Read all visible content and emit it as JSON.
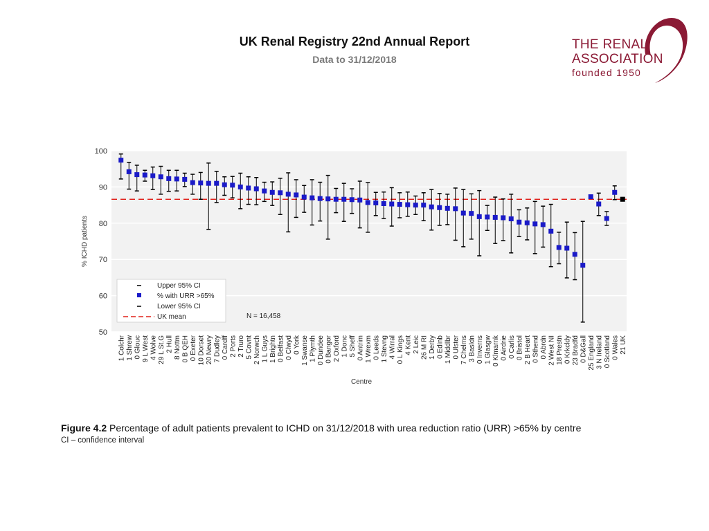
{
  "header": {
    "title": "UK Renal Registry 22nd Annual Report",
    "subtitle": "Data to 31/12/2018"
  },
  "logo": {
    "line1": "THE RENAL",
    "line2": "ASSOCIATION",
    "line3": "founded 1950",
    "color": "#8b1a35"
  },
  "caption": {
    "figure_label": "Figure 4.2",
    "text": " Percentage of adult patients prevalent to ICHD on 31/12/2018 with urea reduction ratio (URR) >65% by centre",
    "note": "CI – confidence interval"
  },
  "chart_data": {
    "type": "scatter",
    "title": "",
    "xlabel": "Centre",
    "ylabel": "% ICHD patients",
    "ylim": [
      50,
      100
    ],
    "yticks": [
      50,
      60,
      70,
      80,
      90,
      100
    ],
    "grid": true,
    "uk_mean": 86.6,
    "annotation": "N = 16,458",
    "legend": {
      "position": "bottom-left",
      "entries": [
        "Upper 95% CI",
        "% with URR >65%",
        "Lower 95% CI",
        "UK mean"
      ]
    },
    "colors": {
      "point": "#1a1ac8",
      "errorbar": "#000000",
      "mean": "#e0201a",
      "plot_bg": "#f2f2f2",
      "grid": "#ffffff",
      "aggregate_point": "#000000"
    },
    "categories": [
      "1 Colchr",
      "1 Shrew",
      "0 Glouc",
      "9 L West",
      "4 Wolve",
      "29 L St.G",
      "2 Hull",
      "8 Nottm",
      "0 B QEH",
      "0 Exeter",
      "10 Dorset",
      "20 Newry",
      "7 Dudley",
      "0 Cardff",
      "2 Ports",
      "2 Truro",
      "5 Covnt",
      "2 Norwch",
      "1 L Guys",
      "1 Brightn",
      "0 Belfast",
      "0 Clwyd",
      "0 York",
      "1 Swanse",
      "1 Plymth",
      "0 Dundee",
      "0 Bangor",
      "2 Oxford",
      "1 Donc",
      "5 Sheff",
      "0 Antrim",
      "1 Wrexm",
      "0 Leeds",
      "1 Stevng",
      "4 Wirral",
      "0 L Kings",
      "4 Kent",
      "2 Leic",
      "26 M RI",
      "1 Derby",
      "0 Edinb",
      "1 Middlbr",
      "0 Ulster",
      "7 Chelms",
      "3 Basldn",
      "0 Inverns",
      "1 Glasgw",
      "0 Klmarnk",
      "0 Airdrie",
      "0 Carlis",
      "0 Bristol",
      "2 B Heart",
      "0 Sthend",
      "0 Abrdn",
      "2 West NI",
      "18 Prestn",
      "0 Krkcldy",
      "23 Bradfd",
      "0 D&Gall",
      "25 England",
      "3 N Ireland",
      "0 Scotland",
      "0 Wales",
      "21 UK"
    ],
    "series": [
      {
        "name": "% with URR >65%",
        "values": [
          97.4,
          94.2,
          93.4,
          93.3,
          93.1,
          92.8,
          92.3,
          92.2,
          92.1,
          91.2,
          91.1,
          91.0,
          91.0,
          90.6,
          90.5,
          90.0,
          89.7,
          89.5,
          88.9,
          88.5,
          88.4,
          88.0,
          87.8,
          87.2,
          87.0,
          86.8,
          86.7,
          86.6,
          86.6,
          86.5,
          86.4,
          85.7,
          85.6,
          85.4,
          85.3,
          85.2,
          85.1,
          85.0,
          85.0,
          84.5,
          84.3,
          84.1,
          84.0,
          82.8,
          82.7,
          81.8,
          81.7,
          81.6,
          81.5,
          81.2,
          80.3,
          80.1,
          79.8,
          79.6,
          77.8,
          73.3,
          73.1,
          71.4,
          68.4,
          87.3,
          85.3,
          81.3,
          88.5,
          86.6
        ]
      },
      {
        "name": "Upper 95% CI",
        "values": [
          99.1,
          96.8,
          96.0,
          94.6,
          95.5,
          95.7,
          94.6,
          94.6,
          93.8,
          93.5,
          94.0,
          96.6,
          94.3,
          92.8,
          92.9,
          93.8,
          92.8,
          92.6,
          91.3,
          91.4,
          92.4,
          93.9,
          92.0,
          90.4,
          92.0,
          91.3,
          93.2,
          89.6,
          91.0,
          89.5,
          91.6,
          91.2,
          88.5,
          88.6,
          89.8,
          88.4,
          88.6,
          87.5,
          88.4,
          89.3,
          88.2,
          88.0,
          89.7,
          89.3,
          88.1,
          89.0,
          84.9,
          87.2,
          86.7,
          88.0,
          83.7,
          84.2,
          86.0,
          84.7,
          85.2,
          77.5,
          80.3,
          77.4,
          80.5,
          87.6,
          88.3,
          83.2,
          90.3,
          87.1
        ]
      },
      {
        "name": "Lower 95% CI",
        "values": [
          92.2,
          89.4,
          88.9,
          91.6,
          89.3,
          88.0,
          88.8,
          88.9,
          90.1,
          88.0,
          86.6,
          78.3,
          85.7,
          87.7,
          87.0,
          84.0,
          85.2,
          85.1,
          86.0,
          84.9,
          82.4,
          77.6,
          81.6,
          83.0,
          79.5,
          80.6,
          75.6,
          82.9,
          80.5,
          82.7,
          78.7,
          77.5,
          82.1,
          81.3,
          79.2,
          81.5,
          81.9,
          82.4,
          80.7,
          78.1,
          79.4,
          79.6,
          75.3,
          73.5,
          75.6,
          71.0,
          78.0,
          74.4,
          75.2,
          71.8,
          76.3,
          75.4,
          71.6,
          73.4,
          68.0,
          68.8,
          64.9,
          64.4,
          52.7,
          87.0,
          82.1,
          79.4,
          86.5,
          86.1
        ]
      }
    ]
  }
}
